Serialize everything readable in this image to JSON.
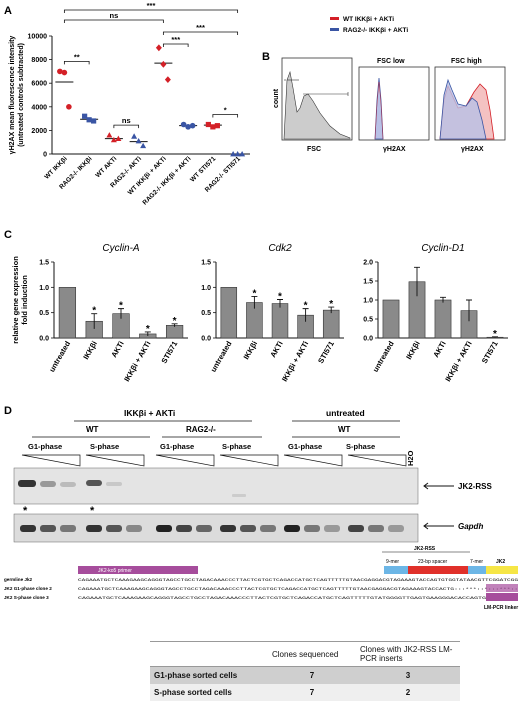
{
  "panel_labels": {
    "a": "A",
    "b": "B",
    "c": "C",
    "d": "D"
  },
  "chart_data": [
    {
      "type": "scatter",
      "panel": "A",
      "ylabel": "γH2AX mean fluorescence intensity (untreated controls subtracted)",
      "ylabel_lines": [
        "γH2AX mean fluorescence intensity",
        "(untreated controls subtracted)"
      ],
      "ylim": [
        0,
        10000
      ],
      "yticks": [
        "0",
        "2000",
        "4000",
        "6000",
        "8000",
        "10000"
      ],
      "yticks_values": [
        0,
        2000,
        4000,
        6000,
        8000,
        10000
      ],
      "categories": [
        "WT IKKβi",
        "RAG2-/- IKKβi",
        "WT AKTi",
        "RAG2-/- AKTi",
        "WT IKKβi + AKTi",
        "RAG2-/- IKKβi + AKTi",
        "WT STI571",
        "RAG2-/- STI571"
      ],
      "colors": [
        "#d42027",
        "#3a55a4",
        "#d42027",
        "#3a55a4",
        "#d42027",
        "#3a55a4",
        "#d42027",
        "#3a55a4"
      ],
      "markers": [
        "circle",
        "square",
        "triangle",
        "triangle",
        "diamond",
        "circle",
        "square",
        "triangle"
      ],
      "points": [
        [
          7000,
          6900,
          4000
        ],
        [
          3200,
          2900,
          2800
        ],
        [
          1600,
          1200,
          1300
        ],
        [
          1500,
          1100,
          700
        ],
        [
          9000,
          7600,
          6300
        ],
        [
          2500,
          2300,
          2400
        ],
        [
          2500,
          2300,
          2400
        ],
        [
          0,
          0,
          0
        ]
      ],
      "medians": [
        6100,
        2950,
        1300,
        1050,
        7700,
        2400,
        2450,
        0
      ],
      "significance": [
        {
          "from": 0,
          "to": 1,
          "label": "**",
          "level": 0
        },
        {
          "from": 2,
          "to": 3,
          "label": "ns",
          "level": 0
        },
        {
          "from": 4,
          "to": 5,
          "label": "***",
          "level": 0
        },
        {
          "from": 6,
          "to": 7,
          "label": "*",
          "level": 0
        },
        {
          "from": 4,
          "to": 7,
          "label": "***",
          "level": 1
        },
        {
          "from": 0,
          "to": 4,
          "label": "ns",
          "level": 2
        },
        {
          "from": 0,
          "to": 7,
          "label": "***",
          "level": 3
        }
      ]
    },
    {
      "type": "bar",
      "panel": "C",
      "title": "Cyclin-A",
      "ylabel": "relative gene expression fold induction",
      "ylabel_lines": [
        "relative gene expression",
        "fold induction"
      ],
      "ylim": [
        0,
        1.5
      ],
      "yticks": [
        "0.0",
        "0.5",
        "1.0",
        "1.5"
      ],
      "yticks_values": [
        0,
        0.5,
        1,
        1.5
      ],
      "categories": [
        "untreated",
        "IKKβi",
        "AKTi",
        "IKKβi + AKTi",
        "STI571"
      ],
      "values": [
        1.0,
        0.33,
        0.48,
        0.08,
        0.25
      ],
      "errors": [
        0,
        0.15,
        0.1,
        0.04,
        0.03
      ],
      "stars": [
        "",
        "*",
        "*",
        "*",
        "*"
      ]
    },
    {
      "type": "bar",
      "panel": "C",
      "title": "Cdk2",
      "ylim": [
        0,
        1.5
      ],
      "yticks": [
        "0.0",
        "0.5",
        "1.0",
        "1.5"
      ],
      "yticks_values": [
        0,
        0.5,
        1,
        1.5
      ],
      "categories": [
        "untreated",
        "IKKβi",
        "AKTi",
        "IKKβi + AKTi",
        "STI571"
      ],
      "values": [
        1.0,
        0.7,
        0.68,
        0.45,
        0.55
      ],
      "errors": [
        0,
        0.12,
        0.08,
        0.13,
        0.06
      ],
      "stars": [
        "",
        "*",
        "*",
        "*",
        "*"
      ]
    },
    {
      "type": "bar",
      "panel": "C",
      "title": "Cyclin-D1",
      "ylim": [
        0,
        2.0
      ],
      "yticks": [
        "0.0",
        "0.5",
        "1.0",
        "1.5",
        "2.0"
      ],
      "yticks_values": [
        0,
        0.5,
        1,
        1.5,
        2
      ],
      "categories": [
        "untreated",
        "IKKβi",
        "AKTi",
        "IKKβi + AKTi",
        "STI571"
      ],
      "values": [
        1.0,
        1.48,
        1.0,
        0.72,
        0.02
      ],
      "errors": [
        0,
        0.38,
        0.07,
        0.28,
        0.01
      ],
      "stars": [
        "",
        "",
        "",
        "",
        "*"
      ]
    }
  ],
  "panel_b": {
    "legend": [
      "WT IKKβi + AKTi",
      "RAG2-/- IKKβi + AKTi"
    ],
    "legend_colors": [
      "#d42027",
      "#3a55a4"
    ],
    "titles": [
      "",
      "FSC low",
      "FSC high"
    ],
    "ylabel": "count",
    "xlabels": [
      "FSC",
      "γH2AX",
      "γH2AX"
    ]
  },
  "panel_d": {
    "group_treated": "IKKβi + AKTi",
    "group_untreated": "untreated",
    "wt": "WT",
    "rag": "RAG2-/-",
    "wt2": "WT",
    "phases": [
      "G1-phase",
      "S-phase",
      "G1-phase",
      "S-phase",
      "G1-phase",
      "S-phase"
    ],
    "h2o": "H2O",
    "jk2_label": "JK2-RSS",
    "gapdh_label": "Gapdh",
    "stars": [
      "*",
      "*"
    ]
  },
  "sequence": {
    "jk2rss_top": "JK2-RSS",
    "nine_mer": "9-mer",
    "spacer": "23-bp spacer",
    "seven_mer": "7-mer",
    "jk2": "JK2",
    "primer": "JK2-ko5 primer",
    "linker": "LM-PCR linker",
    "rows": [
      {
        "label": "germline Jk2",
        "seq": "CAGAAATGCTCAAAGAAGCAGGGTAGCCTGCCTAGACAAACCCTTACTCGTGCTCAGACCATGCTCAGTTTTTGTAACGAGGACGTAGAAAGTACCAGTGTGGTATAACGTTCGGATCGG"
      },
      {
        "label": "JK2 G1-phase clone 2",
        "seq": "CAGAAATGCTCAAAGAAGCAGGGTAGCCTGCCTAGACAAACCCTTACTCGTGCTCAGACCATGCTCAGTTTTTGTAACGAGGACGTAGAAAGTACCACTG:::***::*:::***::"
      },
      {
        "label": "JK2 S-phase clone 3",
        "seq": "CAGAAATGCTCAAAGAAGCAGGGTAGCCTGCCTAGACAAACCCTTACTCGTGCTCAGACCATGCTCAGTTTTTGTATGGGGTTGAGTGAAGGGACACCAGTG"
      }
    ]
  },
  "table": {
    "headers": [
      "",
      "Clones sequenced",
      "Clones with JK2-RSS LM-PCR inserts"
    ],
    "rows": [
      [
        "G1-phase sorted cells",
        "7",
        "3"
      ],
      [
        "S-phase sorted cells",
        "7",
        "2"
      ]
    ]
  }
}
